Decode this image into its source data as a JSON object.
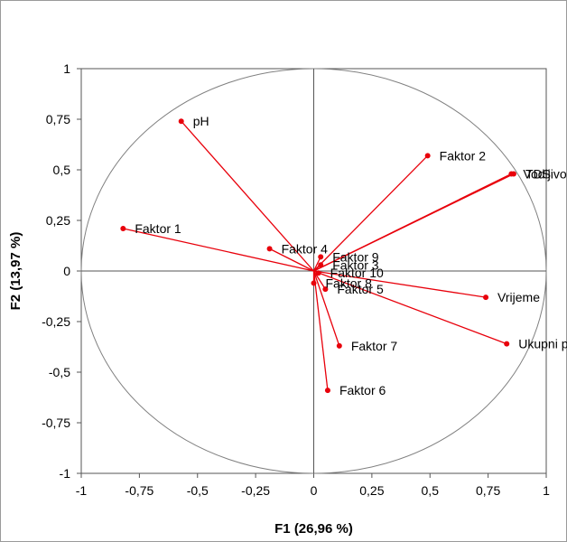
{
  "chart_data": {
    "type": "scatter",
    "subtype": "correlation-circle",
    "title": "",
    "xlabel": "F1 (26,96 %)",
    "ylabel": "F2 (13,97 %)",
    "xlim": [
      -1,
      1
    ],
    "ylim": [
      -1,
      1
    ],
    "x_ticks": [
      "-1",
      "-0,75",
      "-0,5",
      "-0,25",
      "0",
      "0,25",
      "0,5",
      "0,75",
      "1"
    ],
    "y_ticks": [
      "-1",
      "-0,75",
      "-0,5",
      "-0,25",
      "0",
      "0,25",
      "0,5",
      "0,75",
      "1"
    ],
    "grid": false,
    "unit_circle": true,
    "series_color": "#e8000b",
    "circle_color": "#808080",
    "points": [
      {
        "name": "pH",
        "x": -0.57,
        "y": 0.74
      },
      {
        "name": "Faktor 1",
        "x": -0.82,
        "y": 0.21
      },
      {
        "name": "Faktor 2",
        "x": 0.49,
        "y": 0.57
      },
      {
        "name": "Vodljivost",
        "x": 0.85,
        "y": 0.48
      },
      {
        "name": "TDS",
        "x": 0.86,
        "y": 0.48
      },
      {
        "name": "Faktor 4",
        "x": -0.19,
        "y": 0.11
      },
      {
        "name": "Faktor 9",
        "x": 0.03,
        "y": 0.07
      },
      {
        "name": "Faktor 3",
        "x": 0.03,
        "y": 0.03
      },
      {
        "name": "Faktor 10",
        "x": 0.02,
        "y": -0.01
      },
      {
        "name": "Faktor 8",
        "x": 0.0,
        "y": -0.06
      },
      {
        "name": "Faktor 5",
        "x": 0.05,
        "y": -0.09
      },
      {
        "name": "Vrijeme",
        "x": 0.74,
        "y": -0.13
      },
      {
        "name": "Faktor 7",
        "x": 0.11,
        "y": -0.37
      },
      {
        "name": "Ukupni polifenoli",
        "x": 0.83,
        "y": -0.36
      },
      {
        "name": "Faktor 6",
        "x": 0.06,
        "y": -0.59
      }
    ]
  }
}
